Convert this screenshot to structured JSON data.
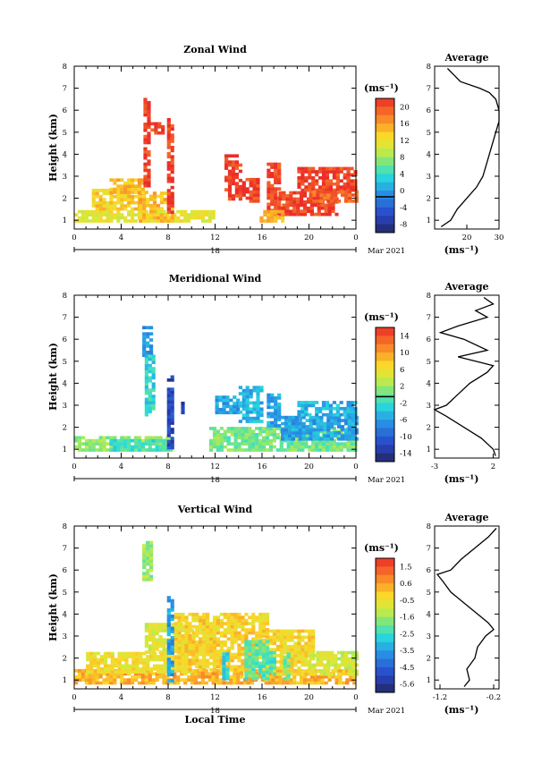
{
  "chart_data": [
    {
      "type": "heatmap",
      "title": "Zonal Wind",
      "xlabel": "",
      "ylabel": "Height (km)",
      "xlim": [
        0,
        24
      ],
      "ylim": [
        0.6,
        8
      ],
      "x_ticks": [
        "0",
        "4",
        "8",
        "12",
        "16",
        "20",
        "0"
      ],
      "y_ticks": [
        "1",
        "2",
        "3",
        "4",
        "5",
        "6",
        "7",
        "8"
      ],
      "date_axis": {
        "day": "18",
        "month_year": "Mar 2021"
      },
      "colorbar": {
        "unit": "(ms⁻¹)",
        "range": [
          -8,
          22
        ],
        "ticks": [
          "20",
          "16",
          "12",
          "8",
          "4",
          "0",
          "-4",
          "-8"
        ],
        "zero_line": 0
      },
      "regions": [
        {
          "t": [
            0,
            12
          ],
          "h": [
            0.9,
            1.45
          ],
          "value": 12
        },
        {
          "t": [
            1.5,
            5.5
          ],
          "h": [
            1.45,
            2.3
          ],
          "value": 14
        },
        {
          "t": [
            5.5,
            8.5
          ],
          "h": [
            0.9,
            2.2
          ],
          "value": 15
        },
        {
          "t": [
            3,
            6
          ],
          "h": [
            2.2,
            2.9
          ],
          "value": 15
        },
        {
          "t": [
            5.9,
            6.4
          ],
          "h": [
            2.5,
            6.5
          ],
          "value": 21
        },
        {
          "t": [
            7.9,
            8.5
          ],
          "h": [
            1.3,
            5.5
          ],
          "value": 21
        },
        {
          "t": [
            6.5,
            7.5
          ],
          "h": [
            4.9,
            5.4
          ],
          "value": 21
        },
        {
          "t": [
            12.8,
            14.3
          ],
          "h": [
            1.9,
            4.0
          ],
          "value": 21
        },
        {
          "t": [
            14.3,
            15.6
          ],
          "h": [
            1.8,
            2.9
          ],
          "value": 21
        },
        {
          "t": [
            16.4,
            17.4
          ],
          "h": [
            1.1,
            3.5
          ],
          "value": 21
        },
        {
          "t": [
            17.4,
            22.5
          ],
          "h": [
            1.2,
            2.3
          ],
          "value": 21
        },
        {
          "t": [
            19,
            24
          ],
          "h": [
            2.3,
            3.3
          ],
          "value": 21
        },
        {
          "t": [
            15.8,
            17.8
          ],
          "h": [
            0.9,
            1.4
          ],
          "value": 15
        },
        {
          "t": [
            20,
            24
          ],
          "h": [
            1.8,
            2.3
          ],
          "value": 19
        }
      ],
      "profile": {
        "title": "Average",
        "xlabel": "(ms⁻¹)",
        "xlim": [
          10,
          30
        ],
        "x_ticks": [
          "20",
          "30"
        ],
        "height": [
          0.7,
          1.0,
          1.5,
          2.0,
          2.5,
          3.0,
          3.5,
          4.0,
          4.5,
          5.0,
          5.5,
          6.0,
          6.5,
          6.8,
          7.0,
          7.3,
          7.6,
          7.9
        ],
        "value": [
          12,
          15,
          17,
          20,
          23,
          25,
          26,
          27,
          28,
          29,
          30,
          30,
          29,
          27,
          24,
          18,
          16,
          14
        ]
      }
    },
    {
      "type": "heatmap",
      "title": "Meridional Wind",
      "xlabel": "",
      "ylabel": "Height (km)",
      "xlim": [
        0,
        24
      ],
      "ylim": [
        0.6,
        8
      ],
      "x_ticks": [
        "0",
        "4",
        "8",
        "12",
        "16",
        "20",
        "0"
      ],
      "y_ticks": [
        "1",
        "2",
        "3",
        "4",
        "5",
        "6",
        "7",
        "8"
      ],
      "date_axis": {
        "day": "18",
        "month_year": "Mar 2021"
      },
      "colorbar": {
        "unit": "(ms⁻¹)",
        "range": [
          -15,
          16
        ],
        "ticks": [
          "14",
          "10",
          "6",
          "2",
          "-2",
          "-6",
          "-10",
          "-14"
        ],
        "zero_line": 0
      },
      "regions": [
        {
          "t": [
            0,
            8.3
          ],
          "h": [
            0.9,
            1.5
          ],
          "value": 2
        },
        {
          "t": [
            3,
            7.8
          ],
          "h": [
            0.9,
            1.4
          ],
          "value": -1
        },
        {
          "t": [
            5.8,
            6.4
          ],
          "h": [
            5.2,
            6.5
          ],
          "value": -6
        },
        {
          "t": [
            6.0,
            6.8
          ],
          "h": [
            2.5,
            5.2
          ],
          "value": -2
        },
        {
          "t": [
            7.9,
            8.5
          ],
          "h": [
            1.0,
            4.3
          ],
          "value": -11
        },
        {
          "t": [
            9.1,
            9.4
          ],
          "h": [
            2.6,
            3.1
          ],
          "value": -12
        },
        {
          "t": [
            11.5,
            24
          ],
          "h": [
            0.9,
            1.9
          ],
          "value": 1
        },
        {
          "t": [
            12,
            14
          ],
          "h": [
            2.6,
            3.4
          ],
          "value": -5
        },
        {
          "t": [
            14,
            16
          ],
          "h": [
            2.2,
            3.8
          ],
          "value": -4
        },
        {
          "t": [
            16.4,
            17.6
          ],
          "h": [
            2.0,
            3.5
          ],
          "value": -5
        },
        {
          "t": [
            17.6,
            24
          ],
          "h": [
            1.4,
            2.5
          ],
          "value": -5
        },
        {
          "t": [
            19,
            24
          ],
          "h": [
            2.5,
            3.1
          ],
          "value": -4
        }
      ],
      "profile": {
        "title": "Average",
        "xlabel": "(ms⁻¹)",
        "xlim": [
          -3,
          2.5
        ],
        "x_ticks": [
          "-3",
          "2"
        ],
        "height": [
          0.7,
          1.0,
          1.5,
          2.0,
          2.5,
          2.8,
          3.0,
          3.5,
          4.0,
          4.5,
          4.8,
          5.0,
          5.2,
          5.5,
          6.0,
          6.3,
          6.6,
          7.0,
          7.3,
          7.6,
          7.9
        ],
        "value": [
          2.2,
          2.0,
          1.0,
          -0.5,
          -2.0,
          -3.0,
          -2.0,
          -1.0,
          0.0,
          1.5,
          2.0,
          0.5,
          -1.0,
          1.5,
          -0.5,
          -2.5,
          -1.0,
          1.5,
          0.5,
          2.0,
          1.2
        ]
      }
    },
    {
      "type": "heatmap",
      "title": "Vertical Wind",
      "xlabel": "Local Time",
      "ylabel": "Height (km)",
      "xlim": [
        0,
        24
      ],
      "ylim": [
        0.6,
        8
      ],
      "x_ticks": [
        "0",
        "4",
        "8",
        "12",
        "16",
        "20",
        "0"
      ],
      "y_ticks": [
        "1",
        "2",
        "3",
        "4",
        "5",
        "6",
        "7",
        "8"
      ],
      "date_axis": {
        "day": "18",
        "month_year": "Mar 2021"
      },
      "colorbar": {
        "unit": "(ms⁻¹)",
        "range": [
          -6.2,
          2.0
        ],
        "ticks": [
          "1.5",
          "0.6",
          "-0.5",
          "-1.6",
          "-2.5",
          "-3.5",
          "-4.5",
          "-5.6"
        ]
      },
      "regions": [
        {
          "t": [
            0,
            24
          ],
          "h": [
            0.8,
            1.4
          ],
          "value": 0.2
        },
        {
          "t": [
            1,
            10
          ],
          "h": [
            1.3,
            2.2
          ],
          "value": -0.6
        },
        {
          "t": [
            6,
            10
          ],
          "h": [
            2.2,
            3.5
          ],
          "value": -0.9
        },
        {
          "t": [
            8.5,
            16.5
          ],
          "h": [
            1.4,
            4.0
          ],
          "value": -0.3
        },
        {
          "t": [
            16,
            20.5
          ],
          "h": [
            1.2,
            3.3
          ],
          "value": -0.4
        },
        {
          "t": [
            20,
            24
          ],
          "h": [
            1.2,
            2.3
          ],
          "value": -1.0
        },
        {
          "t": [
            5.8,
            6.4
          ],
          "h": [
            5.5,
            7.2
          ],
          "value": -1.6
        },
        {
          "t": [
            7.9,
            8.3
          ],
          "h": [
            0.9,
            4.7
          ],
          "value": -3.6
        },
        {
          "t": [
            14.5,
            16.5
          ],
          "h": [
            1.0,
            2.8
          ],
          "value": -2.2
        },
        {
          "t": [
            12.6,
            13.2
          ],
          "h": [
            1.0,
            2.2
          ],
          "value": -2.8
        },
        {
          "t": [
            16.6,
            17.0
          ],
          "h": [
            1.2,
            2.3
          ],
          "value": -2.4
        },
        {
          "t": [
            17.8,
            18.3
          ],
          "h": [
            1.0,
            2.3
          ],
          "value": -2.0
        }
      ],
      "profile": {
        "title": "Average",
        "xlabel": "(ms⁻¹)",
        "xlim": [
          -1.3,
          -0.1
        ],
        "x_ticks": [
          "-1.2",
          "-0.2"
        ],
        "height": [
          0.7,
          1.0,
          1.5,
          2.0,
          2.5,
          3.0,
          3.3,
          3.6,
          4.0,
          4.5,
          5.0,
          5.5,
          5.8,
          6.0,
          6.5,
          7.0,
          7.5,
          7.9
        ],
        "value": [
          -0.75,
          -0.65,
          -0.7,
          -0.55,
          -0.5,
          -0.35,
          -0.2,
          -0.3,
          -0.5,
          -0.75,
          -1.0,
          -1.15,
          -1.25,
          -1.0,
          -0.8,
          -0.55,
          -0.3,
          -0.15
        ]
      }
    }
  ]
}
